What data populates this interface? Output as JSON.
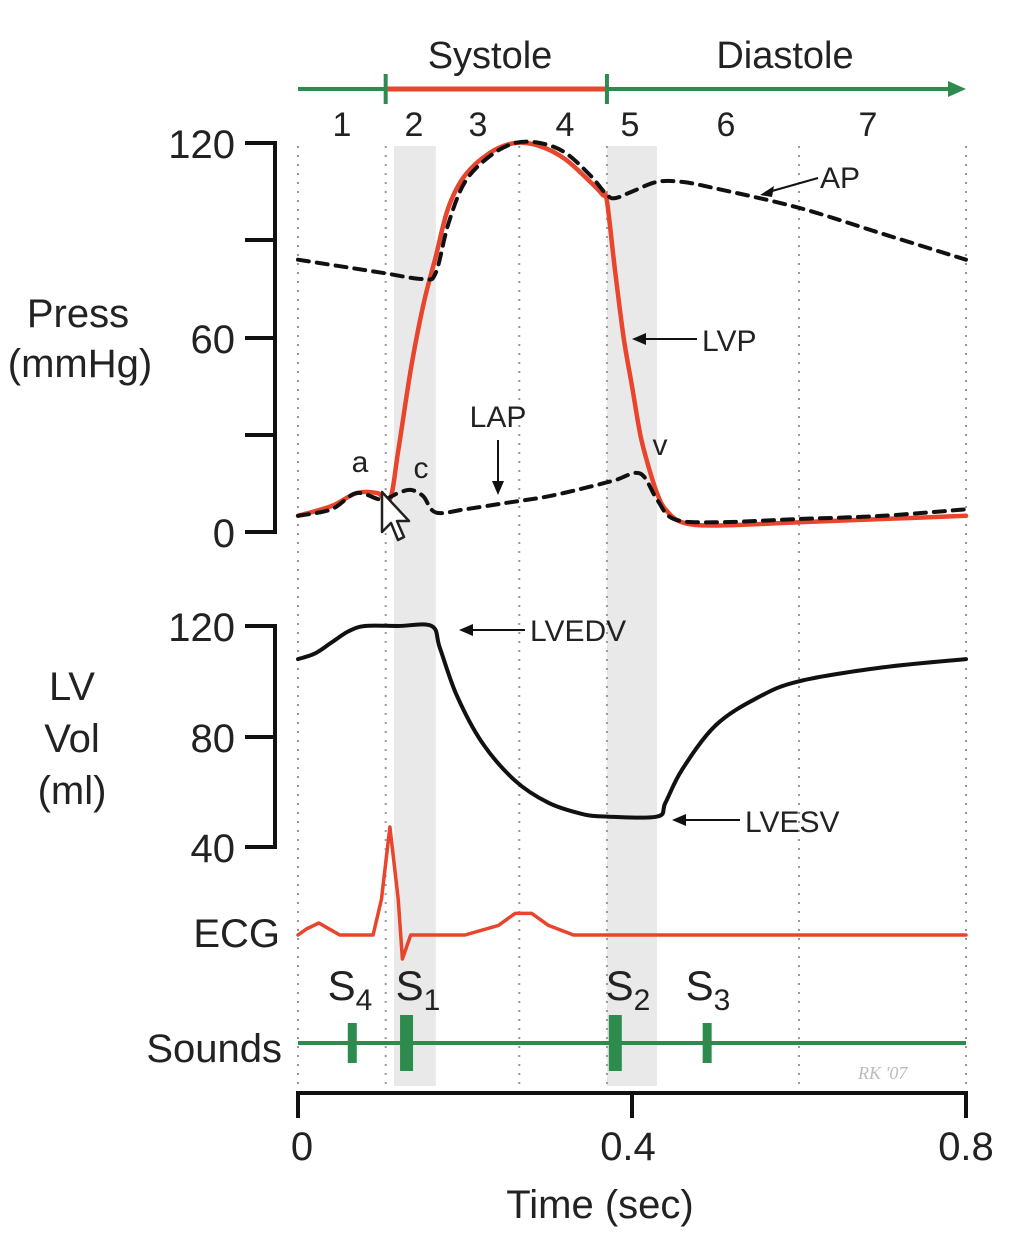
{
  "chart_data": {
    "type": "line",
    "xlabel": "Time (sec)",
    "x_ticks": [
      "0",
      "0.4",
      "0.8"
    ],
    "xlim": [
      0,
      0.8
    ],
    "phase_header": {
      "systole": "Systole",
      "diastole": "Diastole",
      "phases": [
        "1",
        "2",
        "3",
        "4",
        "5",
        "6",
        "7"
      ],
      "boundaries": [
        0,
        0.105,
        0.37,
        0.8
      ]
    },
    "isovolumetric_bands": [
      [
        0.115,
        0.165
      ],
      [
        0.37,
        0.43
      ]
    ],
    "pressure": {
      "ylabel_line1": "Press",
      "ylabel_line2": "(mmHg)",
      "ylim": [
        0,
        120
      ],
      "y_ticks": [
        "0",
        "60",
        "120"
      ],
      "series": [
        {
          "name": "LVP",
          "color": "#e8452c",
          "x": [
            0,
            0.04,
            0.07,
            0.095,
            0.11,
            0.12,
            0.135,
            0.15,
            0.165,
            0.18,
            0.2,
            0.23,
            0.26,
            0.29,
            0.32,
            0.35,
            0.365,
            0.37,
            0.38,
            0.39,
            0.4,
            0.41,
            0.42,
            0.43,
            0.44,
            0.46,
            0.5,
            0.6,
            0.7,
            0.8
          ],
          "y": [
            5,
            8,
            12,
            12,
            10,
            25,
            50,
            70,
            85,
            100,
            110,
            117,
            120,
            119,
            115,
            108,
            104,
            102,
            80,
            60,
            45,
            30,
            20,
            12,
            7,
            3,
            2,
            3,
            4,
            5
          ]
        },
        {
          "name": "AP",
          "color": "#111111",
          "x": [
            0,
            0.05,
            0.1,
            0.15,
            0.165,
            0.18,
            0.2,
            0.23,
            0.26,
            0.29,
            0.32,
            0.35,
            0.37,
            0.38,
            0.4,
            0.43,
            0.46,
            0.5,
            0.6,
            0.7,
            0.8
          ],
          "y": [
            84,
            82,
            80,
            78,
            80,
            95,
            108,
            116,
            120,
            120,
            117,
            110,
            104,
            103,
            105,
            108,
            108,
            106,
            100,
            92,
            84
          ]
        },
        {
          "name": "LAP",
          "color": "#111111",
          "x": [
            0,
            0.04,
            0.07,
            0.1,
            0.12,
            0.135,
            0.15,
            0.165,
            0.2,
            0.25,
            0.3,
            0.35,
            0.38,
            0.41,
            0.43,
            0.45,
            0.5,
            0.6,
            0.7,
            0.8
          ],
          "y": [
            5,
            7,
            12,
            10,
            12,
            13,
            11,
            6,
            7,
            9,
            11,
            14,
            16,
            18,
            10,
            4,
            3,
            4,
            5,
            7
          ]
        }
      ],
      "annotations": [
        "AP",
        "LVP",
        "LAP",
        "a",
        "c",
        "v"
      ]
    },
    "volume": {
      "ylabel_line1": "LV",
      "ylabel_line2": "Vol",
      "ylabel_line3": "(ml)",
      "ylim": [
        40,
        120
      ],
      "y_ticks": [
        "40",
        "80",
        "120"
      ],
      "series": [
        {
          "name": "LV Vol",
          "color": "#111111",
          "x": [
            0,
            0.02,
            0.04,
            0.06,
            0.08,
            0.12,
            0.16,
            0.17,
            0.19,
            0.22,
            0.26,
            0.3,
            0.34,
            0.37,
            0.43,
            0.44,
            0.46,
            0.5,
            0.55,
            0.6,
            0.7,
            0.8
          ],
          "y": [
            108,
            110,
            114,
            118,
            120,
            120,
            120,
            112,
            95,
            78,
            64,
            56,
            52,
            51,
            51,
            56,
            68,
            84,
            94,
            100,
            105,
            108
          ]
        }
      ],
      "annotations": [
        "LVEDV",
        "LVESV"
      ]
    },
    "ecg": {
      "label": "ECG",
      "color": "#e8452c",
      "x": [
        0,
        0.01,
        0.025,
        0.035,
        0.05,
        0.09,
        0.1,
        0.11,
        0.12,
        0.125,
        0.135,
        0.16,
        0.2,
        0.24,
        0.26,
        0.28,
        0.3,
        0.33,
        0.37,
        0.8
      ],
      "y": [
        0,
        0.5,
        1.0,
        0.6,
        0,
        0,
        3,
        9,
        3,
        -2,
        0,
        0,
        0,
        0.8,
        1.8,
        1.8,
        0.8,
        0,
        0,
        0
      ]
    },
    "sounds": {
      "label": "Sounds",
      "color": "#2e8b4e",
      "markers": [
        {
          "name": "S4",
          "main": "S",
          "sub": "4",
          "x": 0.065
        },
        {
          "name": "S1",
          "main": "S",
          "sub": "1",
          "x": 0.13
        },
        {
          "name": "S2",
          "main": "S",
          "sub": "2",
          "x": 0.38
        },
        {
          "name": "S3",
          "main": "S",
          "sub": "3",
          "x": 0.49
        }
      ]
    },
    "signature": "RK '07"
  }
}
